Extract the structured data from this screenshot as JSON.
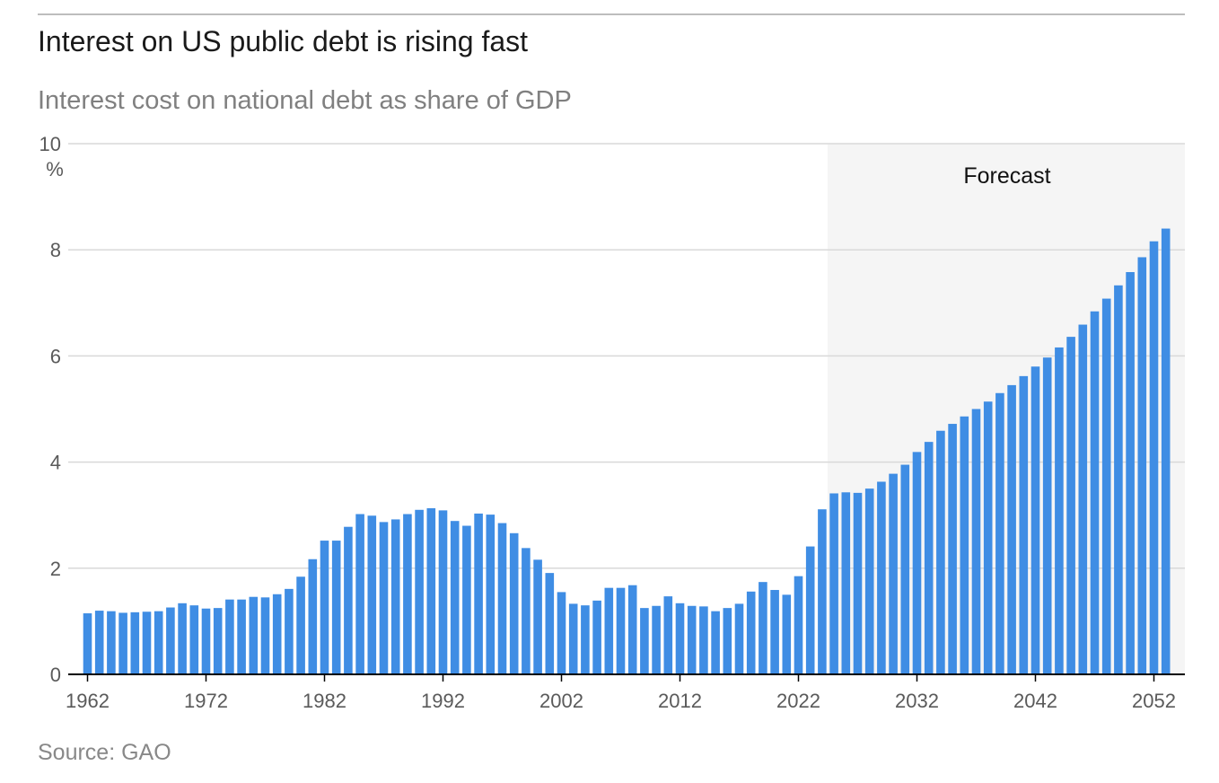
{
  "header": {
    "title": "Interest on US public debt is rising fast",
    "subtitle": "Interest cost on national debt as share of GDP"
  },
  "footer": {
    "source": "Source: GAO"
  },
  "colors": {
    "bar": "#3f8de4",
    "forecast_band": "#f5f5f5",
    "grid": "#d9d9d9",
    "axis": "#000000"
  },
  "chart_data": {
    "type": "bar",
    "title": "Interest on US public debt is rising fast",
    "subtitle": "Interest cost on national debt as share of GDP",
    "ylabel": "%",
    "ylim": [
      0,
      10
    ],
    "yticks": [
      "0",
      "2",
      "4",
      "6",
      "8",
      "10"
    ],
    "xticks": [
      "1962",
      "1972",
      "1982",
      "1992",
      "2002",
      "2012",
      "2022",
      "2032",
      "2042",
      "2052"
    ],
    "grid": true,
    "annotation": "Forecast",
    "forecast_start": 2025,
    "x": [
      1962,
      1963,
      1964,
      1965,
      1966,
      1967,
      1968,
      1969,
      1970,
      1971,
      1972,
      1973,
      1974,
      1975,
      1976,
      1977,
      1978,
      1979,
      1980,
      1981,
      1982,
      1983,
      1984,
      1985,
      1986,
      1987,
      1988,
      1989,
      1990,
      1991,
      1992,
      1993,
      1994,
      1995,
      1996,
      1997,
      1998,
      1999,
      2000,
      2001,
      2002,
      2003,
      2004,
      2005,
      2006,
      2007,
      2008,
      2009,
      2010,
      2011,
      2012,
      2013,
      2014,
      2015,
      2016,
      2017,
      2018,
      2019,
      2020,
      2021,
      2022,
      2023,
      2024,
      2025,
      2026,
      2027,
      2028,
      2029,
      2030,
      2031,
      2032,
      2033,
      2034,
      2035,
      2036,
      2037,
      2038,
      2039,
      2040,
      2041,
      2042,
      2043,
      2044,
      2045,
      2046,
      2047,
      2048,
      2049,
      2050,
      2051,
      2052,
      2053
    ],
    "values": [
      1.15,
      1.2,
      1.19,
      1.16,
      1.17,
      1.18,
      1.19,
      1.26,
      1.34,
      1.3,
      1.24,
      1.25,
      1.41,
      1.41,
      1.46,
      1.45,
      1.51,
      1.61,
      1.84,
      2.17,
      2.52,
      2.52,
      2.78,
      3.02,
      2.99,
      2.87,
      2.92,
      3.02,
      3.1,
      3.13,
      3.09,
      2.89,
      2.8,
      3.03,
      3.01,
      2.85,
      2.66,
      2.38,
      2.16,
      1.91,
      1.55,
      1.33,
      1.3,
      1.39,
      1.63,
      1.63,
      1.68,
      1.25,
      1.29,
      1.47,
      1.34,
      1.29,
      1.28,
      1.19,
      1.25,
      1.33,
      1.56,
      1.74,
      1.59,
      1.5,
      1.85,
      2.41,
      3.11,
      3.41,
      3.43,
      3.42,
      3.5,
      3.63,
      3.78,
      3.95,
      4.19,
      4.38,
      4.59,
      4.72,
      4.86,
      5.0,
      5.14,
      5.3,
      5.45,
      5.62,
      5.8,
      5.97,
      6.16,
      6.36,
      6.59,
      6.84,
      7.08,
      7.33,
      7.58,
      7.86,
      8.16,
      8.4
    ]
  }
}
